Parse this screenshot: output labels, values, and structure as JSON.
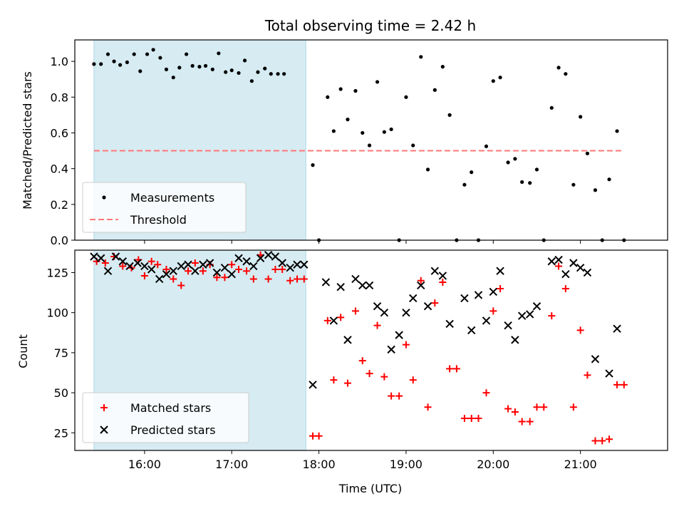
{
  "chart_data": {
    "title": "Total observing time = 2.42 h",
    "colors": {
      "measurements": "#000000",
      "threshold": "#ff7777",
      "matched": "#ff0000",
      "predicted": "#000000",
      "shade": "#add8e6"
    },
    "xaxis": {
      "label": "Time (UTC)",
      "unit": "hour of day",
      "range": [
        15.2,
        22.0
      ],
      "ticks": [
        16,
        17,
        18,
        19,
        20,
        21
      ],
      "tick_labels": [
        "16:00",
        "17:00",
        "18:00",
        "19:00",
        "20:00",
        "21:00"
      ]
    },
    "shaded_interval": [
      15.42,
      17.85
    ],
    "panels": [
      {
        "type": "scatter",
        "ylabel": "Matched/Predicted stars",
        "ylim": [
          0,
          1.12
        ],
        "yticks": [
          0.0,
          0.2,
          0.4,
          0.6,
          0.8,
          1.0
        ],
        "ytick_labels": [
          "0.0",
          "0.2",
          "0.4",
          "0.6",
          "0.8",
          "1.0"
        ],
        "legend": {
          "location": "lower left",
          "entries": [
            "Measurements",
            "Threshold"
          ]
        },
        "threshold": {
          "name": "Threshold",
          "y": 0.5,
          "x_range": [
            15.42,
            21.5
          ]
        },
        "series": [
          {
            "name": "Measurements",
            "marker": "dot",
            "points": [
              [
                15.42,
                0.985
              ],
              [
                15.5,
                0.985
              ],
              [
                15.58,
                1.04
              ],
              [
                15.65,
                1.0
              ],
              [
                15.72,
                0.98
              ],
              [
                15.8,
                0.995
              ],
              [
                15.88,
                1.04
              ],
              [
                15.95,
                0.945
              ],
              [
                16.03,
                1.04
              ],
              [
                16.1,
                1.065
              ],
              [
                16.18,
                1.02
              ],
              [
                16.25,
                0.955
              ],
              [
                16.33,
                0.91
              ],
              [
                16.4,
                0.965
              ],
              [
                16.48,
                1.04
              ],
              [
                16.55,
                0.975
              ],
              [
                16.63,
                0.97
              ],
              [
                16.7,
                0.975
              ],
              [
                16.78,
                0.955
              ],
              [
                16.85,
                1.045
              ],
              [
                16.93,
                0.94
              ],
              [
                17.0,
                0.95
              ],
              [
                17.08,
                0.935
              ],
              [
                17.15,
                1.005
              ],
              [
                17.23,
                0.89
              ],
              [
                17.3,
                0.94
              ],
              [
                17.38,
                0.96
              ],
              [
                17.45,
                0.93
              ],
              [
                17.53,
                0.93
              ],
              [
                17.6,
                0.93
              ],
              [
                17.93,
                0.42
              ],
              [
                18.0,
                0.0
              ],
              [
                18.1,
                0.8
              ],
              [
                18.17,
                0.61
              ],
              [
                18.25,
                0.845
              ],
              [
                18.33,
                0.675
              ],
              [
                18.42,
                0.835
              ],
              [
                18.5,
                0.6
              ],
              [
                18.58,
                0.53
              ],
              [
                18.67,
                0.885
              ],
              [
                18.75,
                0.605
              ],
              [
                18.83,
                0.62
              ],
              [
                18.92,
                0.0
              ],
              [
                19.0,
                0.8
              ],
              [
                19.08,
                0.53
              ],
              [
                19.17,
                1.025
              ],
              [
                19.25,
                0.395
              ],
              [
                19.33,
                0.84
              ],
              [
                19.42,
                0.97
              ],
              [
                19.5,
                0.7
              ],
              [
                19.58,
                0.0
              ],
              [
                19.67,
                0.31
              ],
              [
                19.75,
                0.38
              ],
              [
                19.83,
                0.0
              ],
              [
                19.92,
                0.525
              ],
              [
                20.0,
                0.89
              ],
              [
                20.08,
                0.91
              ],
              [
                20.17,
                0.435
              ],
              [
                20.25,
                0.455
              ],
              [
                20.33,
                0.325
              ],
              [
                20.42,
                0.32
              ],
              [
                20.5,
                0.395
              ],
              [
                20.58,
                0.0
              ],
              [
                20.67,
                0.74
              ],
              [
                20.75,
                0.965
              ],
              [
                20.83,
                0.93
              ],
              [
                20.92,
                0.31
              ],
              [
                21.0,
                0.69
              ],
              [
                21.08,
                0.485
              ],
              [
                21.17,
                0.28
              ],
              [
                21.25,
                0.0
              ],
              [
                21.33,
                0.34
              ],
              [
                21.42,
                0.61
              ],
              [
                21.5,
                0.0
              ]
            ]
          }
        ]
      },
      {
        "type": "scatter",
        "ylabel": "Count",
        "ylim": [
          14,
          139
        ],
        "yticks": [
          25,
          50,
          75,
          100,
          125
        ],
        "ytick_labels": [
          "25",
          "50",
          "75",
          "100",
          "125"
        ],
        "legend": {
          "location": "lower left",
          "entries": [
            "Matched stars",
            "Predicted stars"
          ]
        },
        "series": [
          {
            "name": "Matched stars",
            "marker": "plus",
            "points": [
              [
                15.45,
                132
              ],
              [
                15.55,
                131
              ],
              [
                15.65,
                135
              ],
              [
                15.75,
                129
              ],
              [
                15.85,
                128
              ],
              [
                15.93,
                133
              ],
              [
                16.0,
                123
              ],
              [
                16.08,
                132
              ],
              [
                16.15,
                130
              ],
              [
                16.25,
                127
              ],
              [
                16.33,
                121
              ],
              [
                16.42,
                117
              ],
              [
                16.5,
                126
              ],
              [
                16.58,
                131
              ],
              [
                16.67,
                126
              ],
              [
                16.75,
                130
              ],
              [
                16.83,
                122
              ],
              [
                16.92,
                122
              ],
              [
                17.0,
                130
              ],
              [
                17.08,
                127
              ],
              [
                17.17,
                126
              ],
              [
                17.25,
                121
              ],
              [
                17.33,
                136
              ],
              [
                17.42,
                121
              ],
              [
                17.5,
                127
              ],
              [
                17.58,
                127
              ],
              [
                17.67,
                120
              ],
              [
                17.75,
                121
              ],
              [
                17.83,
                121
              ],
              [
                17.93,
                23
              ],
              [
                18.0,
                23
              ],
              [
                18.1,
                95
              ],
              [
                18.17,
                58
              ],
              [
                18.25,
                97
              ],
              [
                18.33,
                56
              ],
              [
                18.42,
                101
              ],
              [
                18.5,
                70
              ],
              [
                18.58,
                62
              ],
              [
                18.67,
                92
              ],
              [
                18.75,
                60
              ],
              [
                18.83,
                48
              ],
              [
                18.92,
                48
              ],
              [
                19.0,
                80
              ],
              [
                19.08,
                58
              ],
              [
                19.17,
                120
              ],
              [
                19.25,
                41
              ],
              [
                19.33,
                106
              ],
              [
                19.42,
                119
              ],
              [
                19.5,
                65
              ],
              [
                19.58,
                65
              ],
              [
                19.67,
                34
              ],
              [
                19.75,
                34
              ],
              [
                19.83,
                34
              ],
              [
                19.92,
                50
              ],
              [
                20.0,
                101
              ],
              [
                20.08,
                115
              ],
              [
                20.17,
                40
              ],
              [
                20.25,
                38
              ],
              [
                20.33,
                32
              ],
              [
                20.42,
                32
              ],
              [
                20.5,
                41
              ],
              [
                20.58,
                41
              ],
              [
                20.67,
                98
              ],
              [
                20.75,
                129
              ],
              [
                20.83,
                115
              ],
              [
                20.92,
                41
              ],
              [
                21.0,
                89
              ],
              [
                21.08,
                61
              ],
              [
                21.17,
                20
              ],
              [
                21.25,
                20
              ],
              [
                21.33,
                21
              ],
              [
                21.42,
                55
              ],
              [
                21.5,
                55
              ]
            ]
          },
          {
            "name": "Predicted stars",
            "marker": "x",
            "points": [
              [
                15.42,
                135
              ],
              [
                15.5,
                134
              ],
              [
                15.58,
                126
              ],
              [
                15.67,
                135
              ],
              [
                15.75,
                132
              ],
              [
                15.83,
                129
              ],
              [
                15.92,
                131
              ],
              [
                16.0,
                129
              ],
              [
                16.08,
                127
              ],
              [
                16.17,
                121
              ],
              [
                16.25,
                124
              ],
              [
                16.33,
                126
              ],
              [
                16.42,
                129
              ],
              [
                16.5,
                130
              ],
              [
                16.58,
                126
              ],
              [
                16.67,
                130
              ],
              [
                16.75,
                131
              ],
              [
                16.83,
                125
              ],
              [
                16.92,
                128
              ],
              [
                17.0,
                124
              ],
              [
                17.08,
                134
              ],
              [
                17.17,
                132
              ],
              [
                17.25,
                129
              ],
              [
                17.33,
                134
              ],
              [
                17.42,
                136
              ],
              [
                17.5,
                135
              ],
              [
                17.58,
                131
              ],
              [
                17.67,
                128
              ],
              [
                17.75,
                130
              ],
              [
                17.83,
                130
              ],
              [
                17.93,
                55
              ],
              [
                18.08,
                119
              ],
              [
                18.17,
                95
              ],
              [
                18.25,
                116
              ],
              [
                18.33,
                83
              ],
              [
                18.42,
                121
              ],
              [
                18.5,
                117
              ],
              [
                18.58,
                117
              ],
              [
                18.67,
                104
              ],
              [
                18.75,
                100
              ],
              [
                18.83,
                77
              ],
              [
                18.92,
                86
              ],
              [
                19.0,
                100
              ],
              [
                19.08,
                109
              ],
              [
                19.17,
                117
              ],
              [
                19.25,
                104
              ],
              [
                19.33,
                126
              ],
              [
                19.42,
                123
              ],
              [
                19.5,
                93
              ],
              [
                19.67,
                109
              ],
              [
                19.75,
                89
              ],
              [
                19.83,
                111
              ],
              [
                19.92,
                95
              ],
              [
                20.0,
                113
              ],
              [
                20.08,
                126
              ],
              [
                20.17,
                92
              ],
              [
                20.25,
                83
              ],
              [
                20.33,
                98
              ],
              [
                20.42,
                99
              ],
              [
                20.5,
                104
              ],
              [
                20.67,
                132
              ],
              [
                20.75,
                133
              ],
              [
                20.83,
                124
              ],
              [
                20.92,
                131
              ],
              [
                21.0,
                128
              ],
              [
                21.08,
                125
              ],
              [
                21.17,
                71
              ],
              [
                21.33,
                62
              ],
              [
                21.42,
                90
              ]
            ]
          }
        ]
      }
    ]
  }
}
